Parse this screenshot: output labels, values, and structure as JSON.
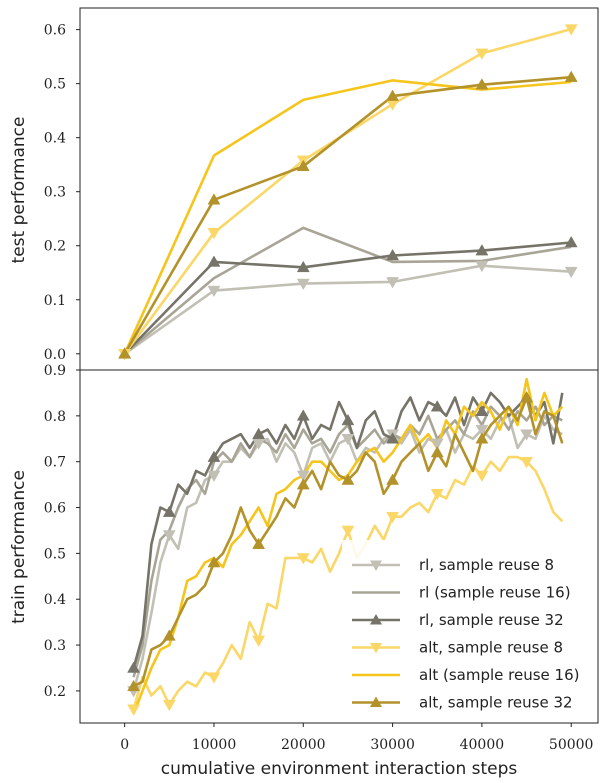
{
  "colors": {
    "rl_8": "#c2c0b4",
    "rl_16": "#a8a596",
    "rl_32": "#767368",
    "alt_8": "#fad766",
    "alt_16": "#f5c51c",
    "alt_32": "#b3922a"
  },
  "chart_data": [
    {
      "type": "line",
      "title": "",
      "xlabel": "",
      "ylabel": "test performance",
      "xlim": [
        -5000,
        53000
      ],
      "ylim": [
        -0.03,
        0.64
      ],
      "yticks": [
        "0.0",
        "0.1",
        "0.2",
        "0.3",
        "0.4",
        "0.5",
        "0.6"
      ],
      "grid": false,
      "series": [
        {
          "name": "rl, sample reuse 8",
          "marker": "triangle-down",
          "x": [
            0,
            10000,
            20000,
            30000,
            40000,
            50000
          ],
          "y": [
            0.0,
            0.117,
            0.13,
            0.133,
            0.163,
            0.152
          ]
        },
        {
          "name": "rl (sample reuse 16)",
          "marker": "none",
          "x": [
            0,
            10000,
            20000,
            30000,
            40000,
            50000
          ],
          "y": [
            0.0,
            0.14,
            0.233,
            0.17,
            0.172,
            0.198
          ]
        },
        {
          "name": "rl, sample reuse 32",
          "marker": "triangle-up",
          "x": [
            0,
            10000,
            20000,
            30000,
            40000,
            50000
          ],
          "y": [
            0.0,
            0.17,
            0.16,
            0.182,
            0.191,
            0.206
          ]
        },
        {
          "name": "alt, sample reuse 8",
          "marker": "triangle-down",
          "x": [
            0,
            10000,
            20000,
            30000,
            40000,
            50000
          ],
          "y": [
            0.0,
            0.224,
            0.358,
            0.462,
            0.556,
            0.601
          ]
        },
        {
          "name": "alt (sample reuse 16)",
          "marker": "none",
          "x": [
            0,
            10000,
            20000,
            30000,
            40000,
            50000
          ],
          "y": [
            0.0,
            0.367,
            0.47,
            0.506,
            0.489,
            0.503
          ]
        },
        {
          "name": "alt, sample reuse 32",
          "marker": "triangle-up",
          "x": [
            0,
            10000,
            20000,
            30000,
            40000,
            50000
          ],
          "y": [
            0.0,
            0.285,
            0.347,
            0.477,
            0.498,
            0.512
          ]
        }
      ]
    },
    {
      "type": "line",
      "title": "",
      "xlabel": "cumulative environment interaction steps",
      "ylabel": "train performance",
      "xlim": [
        -5000,
        53000
      ],
      "ylim": [
        0.13,
        0.9
      ],
      "yticks": [
        "0.2",
        "0.3",
        "0.4",
        "0.5",
        "0.6",
        "0.7",
        "0.8",
        "0.9"
      ],
      "xticks": [
        "0",
        "10000",
        "20000",
        "30000",
        "40000",
        "50000"
      ],
      "grid": false,
      "legend": "lower-right",
      "series": [
        {
          "name": "rl, sample reuse 8",
          "marker": "triangle-down",
          "x": [
            1000,
            2000,
            3000,
            4000,
            5000,
            6000,
            7000,
            8000,
            9000,
            10000,
            11000,
            12000,
            13000,
            14000,
            15000,
            16000,
            17000,
            18000,
            19000,
            20000,
            21000,
            22000,
            23000,
            24000,
            25000,
            26000,
            27000,
            28000,
            29000,
            30000,
            31000,
            32000,
            33000,
            34000,
            35000,
            36000,
            37000,
            38000,
            39000,
            40000,
            41000,
            42000,
            43000,
            44000,
            45000,
            46000,
            47000,
            48000,
            49000
          ],
          "y": [
            0.2,
            0.27,
            0.37,
            0.48,
            0.54,
            0.51,
            0.6,
            0.61,
            0.66,
            0.67,
            0.7,
            0.7,
            0.73,
            0.71,
            0.74,
            0.75,
            0.7,
            0.74,
            0.72,
            0.67,
            0.73,
            0.74,
            0.7,
            0.74,
            0.75,
            0.7,
            0.73,
            0.72,
            0.75,
            0.76,
            0.74,
            0.77,
            0.72,
            0.75,
            0.74,
            0.77,
            0.72,
            0.76,
            0.75,
            0.77,
            0.75,
            0.79,
            0.8,
            0.73,
            0.76,
            0.75,
            0.8,
            0.77,
            0.76
          ]
        },
        {
          "name": "rl (sample reuse 16)",
          "marker": "none",
          "x": [
            1000,
            2000,
            3000,
            4000,
            5000,
            6000,
            7000,
            8000,
            9000,
            10000,
            11000,
            12000,
            13000,
            14000,
            15000,
            16000,
            17000,
            18000,
            19000,
            20000,
            21000,
            22000,
            23000,
            24000,
            25000,
            26000,
            27000,
            28000,
            29000,
            30000,
            31000,
            32000,
            33000,
            34000,
            35000,
            36000,
            37000,
            38000,
            39000,
            40000,
            41000,
            42000,
            43000,
            44000,
            45000,
            46000,
            47000,
            48000,
            49000
          ],
          "y": [
            0.23,
            0.3,
            0.44,
            0.53,
            0.55,
            0.6,
            0.64,
            0.66,
            0.63,
            0.7,
            0.72,
            0.7,
            0.74,
            0.71,
            0.75,
            0.74,
            0.72,
            0.76,
            0.73,
            0.77,
            0.74,
            0.75,
            0.72,
            0.76,
            0.78,
            0.73,
            0.75,
            0.77,
            0.74,
            0.76,
            0.75,
            0.78,
            0.76,
            0.8,
            0.75,
            0.77,
            0.79,
            0.76,
            0.81,
            0.78,
            0.82,
            0.8,
            0.77,
            0.81,
            0.79,
            0.82,
            0.78,
            0.8,
            0.79
          ]
        },
        {
          "name": "rl, sample reuse 32",
          "marker": "triangle-up",
          "x": [
            1000,
            2000,
            3000,
            4000,
            5000,
            6000,
            7000,
            8000,
            9000,
            10000,
            11000,
            12000,
            13000,
            14000,
            15000,
            16000,
            17000,
            18000,
            19000,
            20000,
            21000,
            22000,
            23000,
            24000,
            25000,
            26000,
            27000,
            28000,
            29000,
            30000,
            31000,
            32000,
            33000,
            34000,
            35000,
            36000,
            37000,
            38000,
            39000,
            40000,
            41000,
            42000,
            43000,
            44000,
            45000,
            46000,
            47000,
            48000,
            49000
          ],
          "y": [
            0.25,
            0.32,
            0.52,
            0.6,
            0.59,
            0.65,
            0.63,
            0.68,
            0.67,
            0.71,
            0.74,
            0.75,
            0.76,
            0.73,
            0.76,
            0.77,
            0.74,
            0.78,
            0.75,
            0.8,
            0.75,
            0.78,
            0.77,
            0.83,
            0.79,
            0.73,
            0.79,
            0.81,
            0.76,
            0.75,
            0.81,
            0.84,
            0.79,
            0.83,
            0.82,
            0.8,
            0.84,
            0.78,
            0.84,
            0.81,
            0.85,
            0.83,
            0.8,
            0.82,
            0.84,
            0.8,
            0.83,
            0.74,
            0.85
          ]
        },
        {
          "name": "alt, sample reuse 8",
          "marker": "triangle-down",
          "x": [
            1000,
            2000,
            3000,
            4000,
            5000,
            6000,
            7000,
            8000,
            9000,
            10000,
            11000,
            12000,
            13000,
            14000,
            15000,
            16000,
            17000,
            18000,
            19000,
            20000,
            21000,
            22000,
            23000,
            24000,
            25000,
            26000,
            27000,
            28000,
            29000,
            30000,
            31000,
            32000,
            33000,
            34000,
            35000,
            36000,
            37000,
            38000,
            39000,
            40000,
            41000,
            42000,
            43000,
            44000,
            45000,
            46000,
            47000,
            48000,
            49000
          ],
          "y": [
            0.16,
            0.23,
            0.19,
            0.21,
            0.17,
            0.2,
            0.22,
            0.21,
            0.24,
            0.23,
            0.26,
            0.3,
            0.27,
            0.35,
            0.31,
            0.39,
            0.38,
            0.49,
            0.49,
            0.49,
            0.48,
            0.51,
            0.46,
            0.5,
            0.55,
            0.49,
            0.52,
            0.56,
            0.53,
            0.58,
            0.58,
            0.6,
            0.61,
            0.59,
            0.63,
            0.62,
            0.66,
            0.65,
            0.69,
            0.67,
            0.7,
            0.68,
            0.71,
            0.71,
            0.7,
            0.68,
            0.64,
            0.59,
            0.57
          ]
        },
        {
          "name": "alt (sample reuse 16)",
          "marker": "none",
          "x": [
            1000,
            2000,
            3000,
            4000,
            5000,
            6000,
            7000,
            8000,
            9000,
            10000,
            11000,
            12000,
            13000,
            14000,
            15000,
            16000,
            17000,
            18000,
            19000,
            20000,
            21000,
            22000,
            23000,
            24000,
            25000,
            26000,
            27000,
            28000,
            29000,
            30000,
            31000,
            32000,
            33000,
            34000,
            35000,
            36000,
            37000,
            38000,
            39000,
            40000,
            41000,
            42000,
            43000,
            44000,
            45000,
            46000,
            47000,
            48000,
            49000
          ],
          "y": [
            0.15,
            0.2,
            0.25,
            0.29,
            0.3,
            0.36,
            0.44,
            0.45,
            0.48,
            0.49,
            0.47,
            0.52,
            0.54,
            0.57,
            0.6,
            0.56,
            0.63,
            0.64,
            0.66,
            0.67,
            0.7,
            0.7,
            0.68,
            0.66,
            0.67,
            0.7,
            0.72,
            0.73,
            0.7,
            0.72,
            0.75,
            0.78,
            0.74,
            0.76,
            0.73,
            0.79,
            0.76,
            0.82,
            0.8,
            0.83,
            0.81,
            0.77,
            0.82,
            0.78,
            0.88,
            0.79,
            0.85,
            0.8,
            0.82
          ]
        },
        {
          "name": "alt, sample reuse 32",
          "marker": "triangle-up",
          "x": [
            1000,
            2000,
            3000,
            4000,
            5000,
            6000,
            7000,
            8000,
            9000,
            10000,
            11000,
            12000,
            13000,
            14000,
            15000,
            16000,
            17000,
            18000,
            19000,
            20000,
            21000,
            22000,
            23000,
            24000,
            25000,
            26000,
            27000,
            28000,
            29000,
            30000,
            31000,
            32000,
            33000,
            34000,
            35000,
            36000,
            37000,
            38000,
            39000,
            40000,
            41000,
            42000,
            43000,
            44000,
            45000,
            46000,
            47000,
            48000,
            49000
          ],
          "y": [
            0.21,
            0.22,
            0.29,
            0.3,
            0.32,
            0.36,
            0.4,
            0.41,
            0.43,
            0.48,
            0.5,
            0.54,
            0.6,
            0.55,
            0.52,
            0.55,
            0.58,
            0.62,
            0.6,
            0.65,
            0.68,
            0.64,
            0.7,
            0.67,
            0.66,
            0.68,
            0.72,
            0.7,
            0.63,
            0.66,
            0.7,
            0.72,
            0.74,
            0.68,
            0.72,
            0.69,
            0.76,
            0.72,
            0.68,
            0.75,
            0.78,
            0.8,
            0.82,
            0.79,
            0.84,
            0.76,
            0.81,
            0.8,
            0.74
          ]
        }
      ]
    }
  ]
}
